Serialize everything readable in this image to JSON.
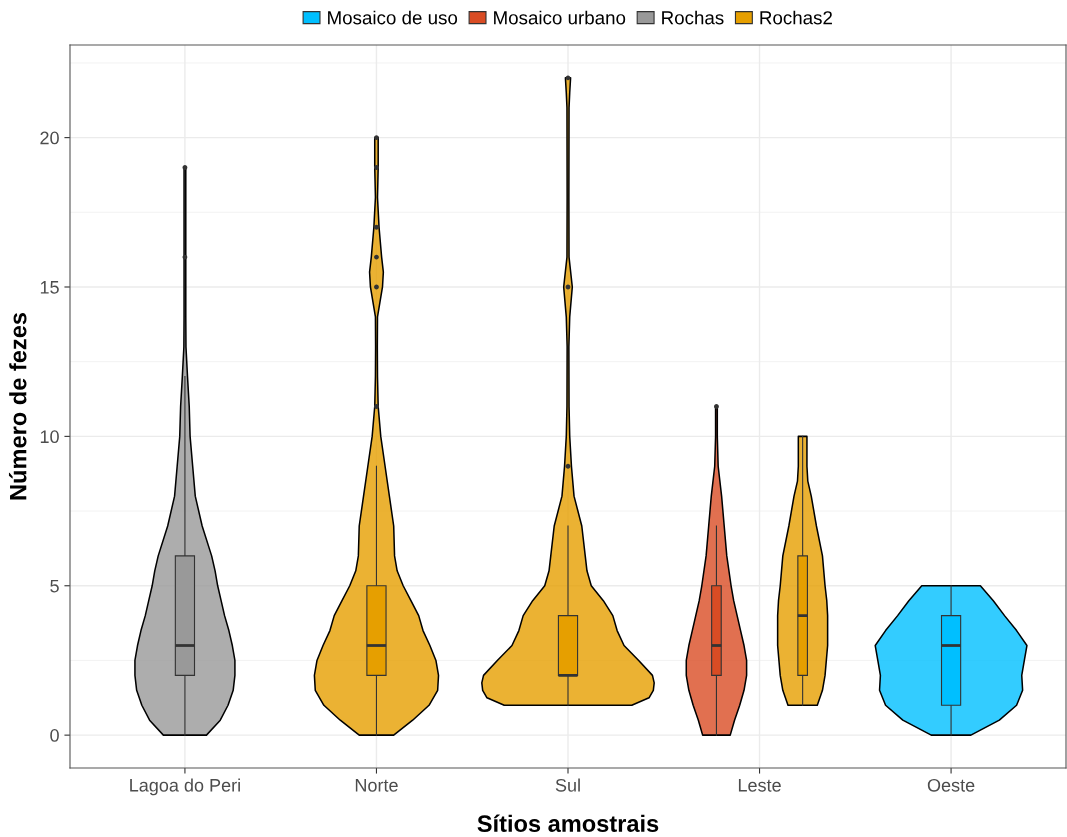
{
  "chart_data": {
    "type": "box",
    "xlabel": "Sítios amostrais",
    "ylabel": "Número de fezes",
    "categories": [
      "Lagoa do Peri",
      "Norte",
      "Sul",
      "Leste",
      "Oeste"
    ],
    "ylim": [
      -1.1,
      23.1
    ],
    "yticks": [
      0,
      5,
      10,
      15,
      20
    ],
    "grid": true,
    "legend": "top",
    "series": [
      {
        "name": "Mosaico de uso",
        "color": "#00bfff",
        "boxes": [
          null,
          null,
          null,
          null,
          {
            "low": 0,
            "q1": 1,
            "median": 3,
            "q3": 4,
            "high": 5
          }
        ]
      },
      {
        "name": "Mosaico urbano",
        "color": "#d94c24",
        "boxes": [
          null,
          null,
          null,
          {
            "low": 0,
            "q1": 2,
            "median": 3,
            "q3": 5,
            "high": 7,
            "outliers": [
              11
            ]
          },
          null
        ]
      },
      {
        "name": "Rochas",
        "color": "#999999",
        "boxes": [
          {
            "low": 0,
            "q1": 2,
            "median": 3,
            "q3": 6,
            "high": 12,
            "outliers": [
              16,
              19
            ]
          },
          null,
          null,
          null,
          null
        ]
      },
      {
        "name": "Rochas2",
        "color": "#e69f00",
        "boxes": [
          null,
          {
            "low": 0,
            "q1": 2,
            "median": 3,
            "q3": 5,
            "high": 9,
            "outliers": [
              11,
              15,
              16,
              17,
              19,
              20
            ]
          },
          {
            "low": 1,
            "q1": 2,
            "median": 2,
            "q3": 4,
            "high": 7,
            "outliers": [
              9,
              15,
              22
            ]
          },
          {
            "low": 1,
            "q1": 2,
            "median": 4,
            "q3": 6,
            "high": 10
          },
          null
        ]
      }
    ]
  }
}
